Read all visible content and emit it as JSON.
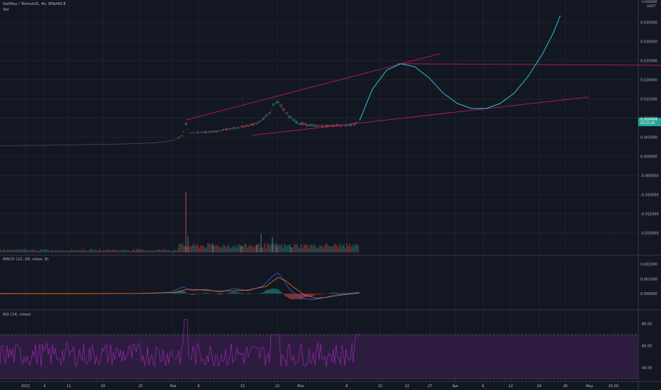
{
  "header": {
    "symbol_line": "SelfKey / TetherUS, 4h, BINANCE",
    "vol_label": "Vol",
    "macd_label": "MACD (12, 26, close, 9)",
    "rsi_label": "RSI (14, close)",
    "currency_label": "USDT",
    "currency_top": "0.040000"
  },
  "price_tag": {
    "value": "0.009404",
    "time": "01:22:49",
    "color": "#26a69a"
  },
  "colors": {
    "background": "#131722",
    "grid": "#2a2e39",
    "up": "#26a69a",
    "down": "#ef5350",
    "trendline": "#c2185b",
    "projection": "#26c6da",
    "macd": "#2962ff",
    "signal": "#ff6d00",
    "rsi": "#9c27b0",
    "rsi_band": "#3b1f4d"
  },
  "chart_data": [
    {
      "type": "line",
      "name": "price",
      "y_ticks": [
        "0.035000",
        "0.030000",
        "0.025000",
        "0.020000",
        "0.015000",
        "0.010000",
        "0.005000",
        "0.000000",
        "-0.005000",
        "-0.010000",
        "-0.015000",
        "-0.020000"
      ],
      "ylim": [
        -0.024,
        0.039
      ],
      "x_tick_labels": [
        "2021",
        "4",
        "11",
        "18",
        "25",
        "Feb",
        "8",
        "15",
        "22",
        "Mar",
        "8",
        "15",
        "22",
        "27",
        "Apr",
        "6",
        "12",
        "19",
        "26",
        "May",
        "15:00"
      ],
      "price_path": [
        [
          0,
          0.00285
        ],
        [
          60,
          0.0029
        ],
        [
          120,
          0.0031
        ],
        [
          180,
          0.0033
        ],
        [
          220,
          0.0036
        ],
        [
          245,
          0.0042
        ],
        [
          258,
          0.0055
        ],
        [
          262,
          0.0092
        ],
        [
          266,
          0.0063
        ],
        [
          285,
          0.0062
        ],
        [
          305,
          0.0066
        ],
        [
          325,
          0.0072
        ],
        [
          345,
          0.0078
        ],
        [
          360,
          0.0085
        ],
        [
          372,
          0.0099
        ],
        [
          380,
          0.0112
        ],
        [
          386,
          0.0135
        ],
        [
          392,
          0.0142
        ],
        [
          398,
          0.0128
        ],
        [
          404,
          0.0113
        ],
        [
          412,
          0.0096
        ],
        [
          420,
          0.0088
        ],
        [
          432,
          0.0082
        ],
        [
          445,
          0.008
        ],
        [
          460,
          0.0079
        ],
        [
          475,
          0.0081
        ],
        [
          490,
          0.0082
        ],
        [
          500,
          0.0083
        ],
        [
          507,
          0.0094
        ]
      ],
      "projection": [
        [
          507,
          0.0094
        ],
        [
          525,
          0.0175
        ],
        [
          545,
          0.0225
        ],
        [
          565,
          0.0242
        ],
        [
          585,
          0.0234
        ],
        [
          605,
          0.0205
        ],
        [
          625,
          0.0165
        ],
        [
          645,
          0.0138
        ],
        [
          665,
          0.0125
        ],
        [
          685,
          0.0125
        ],
        [
          705,
          0.0138
        ],
        [
          725,
          0.0165
        ],
        [
          745,
          0.021
        ],
        [
          765,
          0.0268
        ],
        [
          780,
          0.0322
        ],
        [
          790,
          0.0368
        ]
      ],
      "trendlines": [
        {
          "from": [
            262,
            0.0095
          ],
          "to": [
            620,
            0.0268
          ]
        },
        {
          "from": [
            355,
            0.0055
          ],
          "to": [
            830,
            0.0155
          ]
        },
        {
          "from": [
            560,
            0.0242
          ],
          "to": [
            932,
            0.0238
          ]
        }
      ]
    },
    {
      "type": "bar",
      "name": "volume",
      "baseline_ratio": 0.0,
      "spikes": [
        [
          262,
          0.95
        ],
        [
          265,
          0.25
        ],
        [
          300,
          0.14
        ],
        [
          340,
          0.11
        ],
        [
          362,
          0.12
        ],
        [
          368,
          0.3
        ],
        [
          384,
          0.24
        ],
        [
          390,
          0.14
        ],
        [
          410,
          0.08
        ]
      ]
    },
    {
      "type": "line",
      "name": "MACD",
      "y_ticks": [
        "0.002000",
        "0.001000",
        "0.000000"
      ],
      "ylim": [
        -0.0009,
        0.0024
      ],
      "macd": [
        [
          0,
          0.0
        ],
        [
          200,
          2e-05
        ],
        [
          240,
          0.0001
        ],
        [
          258,
          0.00045
        ],
        [
          270,
          0.0002
        ],
        [
          290,
          0.0003
        ],
        [
          310,
          0.0001
        ],
        [
          330,
          0.00035
        ],
        [
          350,
          0.0002
        ],
        [
          370,
          0.0005
        ],
        [
          385,
          0.0012
        ],
        [
          392,
          0.0014
        ],
        [
          400,
          0.0009
        ],
        [
          410,
          0.0002
        ],
        [
          425,
          -0.0003
        ],
        [
          440,
          -0.0004
        ],
        [
          455,
          -0.0003
        ],
        [
          470,
          -0.0001
        ],
        [
          490,
          0.0
        ],
        [
          507,
          0.0001
        ]
      ],
      "signal": [
        [
          0,
          0.0
        ],
        [
          200,
          2e-05
        ],
        [
          245,
          8e-05
        ],
        [
          265,
          0.0003
        ],
        [
          285,
          0.00025
        ],
        [
          305,
          0.00018
        ],
        [
          330,
          0.0002
        ],
        [
          350,
          0.00025
        ],
        [
          375,
          0.0005
        ],
        [
          392,
          0.0011
        ],
        [
          402,
          0.0009
        ],
        [
          415,
          0.0004
        ],
        [
          430,
          -0.0001
        ],
        [
          445,
          -0.0003
        ],
        [
          460,
          -0.00025
        ],
        [
          480,
          -0.0001
        ],
        [
          507,
          5e-05
        ]
      ]
    },
    {
      "type": "line",
      "name": "RSI",
      "y_ticks": [
        "80.00",
        "60.00",
        "40.00"
      ],
      "ylim": [
        30,
        90
      ],
      "bands": [
        70,
        30
      ]
    }
  ]
}
